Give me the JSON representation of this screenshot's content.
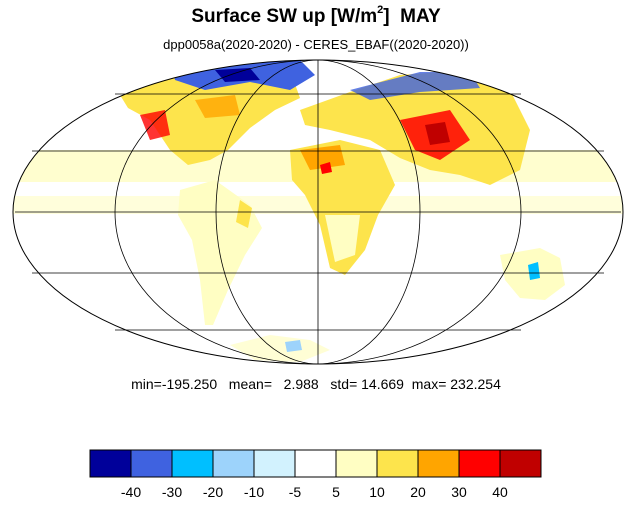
{
  "title": {
    "main": "Surface SW up [W/m",
    "sup": "2",
    "close": "]",
    "month": "MAY"
  },
  "subtitle": "dpp0058a(2020-2020) - CERES_EBAF((2020-2020))",
  "stats": {
    "min_label": "min=",
    "min": "-195.250",
    "mean_label": "mean=",
    "mean": "2.988",
    "std_label": "std=",
    "std": "14.669",
    "max_label": "max=",
    "max": "232.254"
  },
  "colorbar": {
    "colors": [
      "#00009a",
      "#3f62e0",
      "#00bfff",
      "#9dd3fb",
      "#d2f2fe",
      "#ffffff",
      "#fffec3",
      "#fde44c",
      "#ffa500",
      "#ff0000",
      "#c00000"
    ],
    "tick_labels": [
      "-40",
      "-30",
      "-20",
      "-10",
      "-5",
      "5",
      "10",
      "20",
      "30",
      "40"
    ]
  },
  "map": {
    "projection": "Mollweide",
    "field": "Surface SW up difference (model - CERES_EBAF)",
    "grid": true
  }
}
